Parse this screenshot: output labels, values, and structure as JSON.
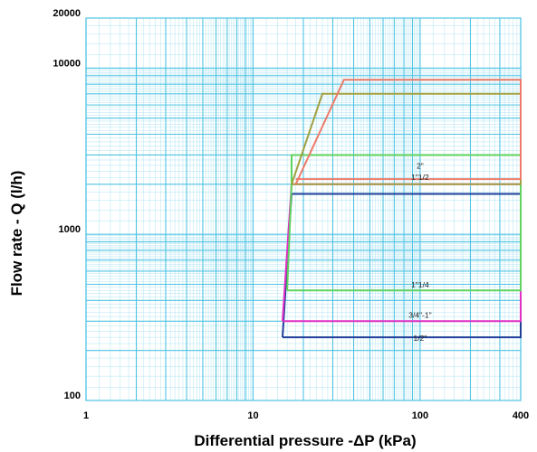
{
  "chart_data": {
    "type": "line",
    "xlabel": "Differential pressure -ΔP (kPa)",
    "ylabel": "Flow rate - Q (l/h)",
    "x_scale": "log",
    "y_scale": "log",
    "xlim": [
      1,
      400
    ],
    "ylim": [
      100,
      20000
    ],
    "x_ticks": [
      {
        "value": 1,
        "label": "1"
      },
      {
        "value": 10,
        "label": "10"
      },
      {
        "value": 100,
        "label": "100"
      },
      {
        "value": 400,
        "label": "400"
      }
    ],
    "y_ticks": [
      {
        "value": 100,
        "label": "100"
      },
      {
        "value": 1000,
        "label": "1000"
      },
      {
        "value": 10000,
        "label": "10000"
      },
      {
        "value": 20000,
        "label": "20000"
      }
    ],
    "grid": true,
    "grid_color": "#4fc3e3",
    "series": [
      {
        "name": "1/2\"",
        "color": "#1f3f9a",
        "label_at": [
          100,
          228
        ],
        "points": [
          [
            15,
            240
          ],
          [
            17,
            1750
          ],
          [
            400,
            1750
          ],
          [
            400,
            240
          ],
          [
            15,
            240
          ]
        ]
      },
      {
        "name": "3/4\"-1\"",
        "color": "#e02fc4",
        "label_at": [
          100,
          315
        ],
        "points": [
          [
            15,
            300
          ],
          [
            17,
            2000
          ],
          [
            400,
            2000
          ],
          [
            400,
            300
          ],
          [
            15,
            300
          ]
        ]
      },
      {
        "name": "1\"1/4",
        "color": "#5fd35f",
        "label_at": [
          100,
          480
        ],
        "points": [
          [
            16,
            460
          ],
          [
            17,
            2000
          ],
          [
            17,
            3000
          ],
          [
            400,
            3000
          ],
          [
            400,
            460
          ],
          [
            16,
            460
          ]
        ]
      },
      {
        "name": "1\"1/2",
        "color": "#a0a040",
        "label_at": [
          100,
          2130
        ],
        "points": [
          [
            17,
            2000
          ],
          [
            26,
            7000
          ],
          [
            400,
            7000
          ],
          [
            400,
            2000
          ],
          [
            17,
            2000
          ]
        ]
      },
      {
        "name": "2\"",
        "color": "#ee7b6a",
        "label_at": [
          100,
          2480
        ],
        "points": [
          [
            18,
            2000
          ],
          [
            35,
            8500
          ],
          [
            400,
            8500
          ],
          [
            400,
            2150
          ],
          [
            18,
            2150
          ]
        ]
      }
    ]
  }
}
